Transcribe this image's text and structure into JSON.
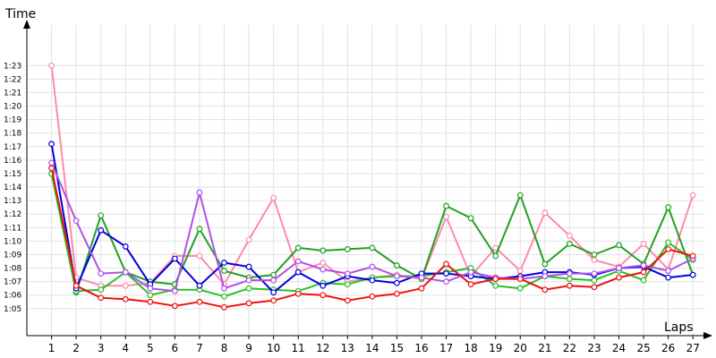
{
  "chart_data": {
    "type": "line",
    "xlabel": "Laps",
    "ylabel": "Time",
    "x": [
      1,
      2,
      3,
      4,
      5,
      6,
      7,
      8,
      9,
      10,
      11,
      12,
      13,
      14,
      15,
      16,
      17,
      18,
      19,
      20,
      21,
      22,
      23,
      24,
      25,
      26,
      27
    ],
    "x_tick_labels": [
      "1",
      "2",
      "3",
      "4",
      "5",
      "6",
      "7",
      "8",
      "9",
      "10",
      "11",
      "12",
      "13",
      "14",
      "15",
      "16",
      "17",
      "18",
      "19",
      "20",
      "21",
      "22",
      "23",
      "24",
      "25",
      "26",
      "27"
    ],
    "xlim": [
      0,
      27.5
    ],
    "y_unit": "seconds",
    "ylim": [
      63,
      86
    ],
    "y_ticks": [
      65,
      66,
      67,
      68,
      69,
      70,
      71,
      72,
      73,
      74,
      75,
      76,
      77,
      78,
      79,
      80,
      81,
      82,
      83
    ],
    "y_tick_labels": [
      "1:05",
      "1:06",
      "1:07",
      "1:08",
      "1:09",
      "1:10",
      "1:11",
      "1:12",
      "1:13",
      "1:14",
      "1:15",
      "1:16",
      "1:17",
      "1:18",
      "1:19",
      "1:20",
      "1:21",
      "1:22",
      "1:23"
    ],
    "grid": true,
    "series": [
      {
        "color": "#ff8aab",
        "values": [
          83.0,
          67.3,
          66.7,
          66.7,
          66.9,
          68.9,
          68.9,
          66.8,
          70.1,
          73.2,
          67.7,
          68.4,
          67.0,
          67.3,
          67.5,
          67.2,
          71.8,
          67.4,
          69.5,
          67.8,
          72.1,
          70.4,
          68.6,
          68.1,
          69.8,
          67.9,
          73.4
        ]
      },
      {
        "color": "#22a022",
        "values": [
          75.0,
          66.2,
          71.9,
          67.7,
          67.0,
          66.8,
          70.9,
          67.8,
          67.3,
          67.5,
          69.5,
          69.3,
          69.4,
          69.5,
          68.2,
          67.2,
          72.6,
          71.7,
          68.9,
          73.4,
          68.3,
          69.8,
          69.0,
          69.7,
          68.3,
          72.5,
          67.5
        ]
      },
      {
        "color": "#28c028",
        "values": [
          75.0,
          66.3,
          66.4,
          67.7,
          66.0,
          66.4,
          66.4,
          65.9,
          66.5,
          66.4,
          66.3,
          66.9,
          66.8,
          67.3,
          67.4,
          67.4,
          67.7,
          68.0,
          66.7,
          66.5,
          67.4,
          67.2,
          67.1,
          67.8,
          67.1,
          69.9,
          68.6
        ]
      },
      {
        "color": "#0000e0",
        "values": [
          77.2,
          66.5,
          70.8,
          69.6,
          66.8,
          68.7,
          66.7,
          68.4,
          68.1,
          66.2,
          67.7,
          66.7,
          67.4,
          67.1,
          66.9,
          67.6,
          67.6,
          67.4,
          67.2,
          67.4,
          67.7,
          67.7,
          67.5,
          68.0,
          68.1,
          67.3,
          67.5
        ]
      },
      {
        "color": "#b050e8",
        "values": [
          75.8,
          71.5,
          67.6,
          67.7,
          66.5,
          66.3,
          73.6,
          66.5,
          67.1,
          67.1,
          68.5,
          67.9,
          67.6,
          68.1,
          67.4,
          67.3,
          67.0,
          67.7,
          67.3,
          67.2,
          67.4,
          67.6,
          67.6,
          68.0,
          68.2,
          67.8,
          68.7
        ]
      },
      {
        "color": "#ee1010",
        "values": [
          75.4,
          66.7,
          65.8,
          65.7,
          65.5,
          65.2,
          65.5,
          65.1,
          65.4,
          65.6,
          66.1,
          66.0,
          65.6,
          65.9,
          66.1,
          66.5,
          68.3,
          66.8,
          67.2,
          67.2,
          66.4,
          66.7,
          66.6,
          67.3,
          67.7,
          69.4,
          68.9
        ]
      }
    ]
  }
}
